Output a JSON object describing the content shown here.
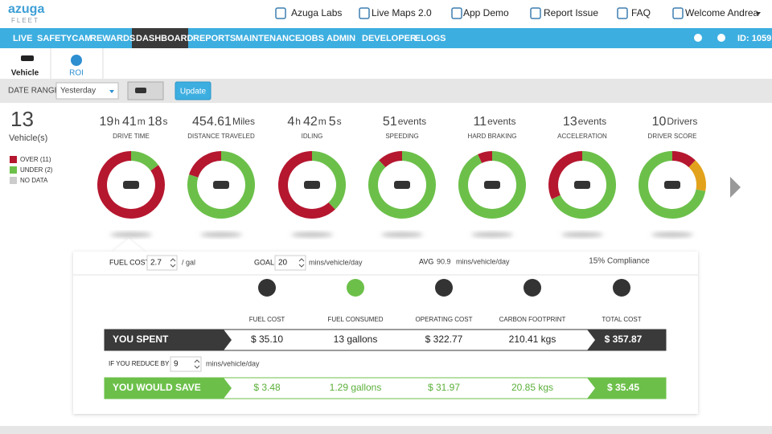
{
  "header": {
    "logo": "azuga",
    "logo_sub": "FLEET",
    "links": [
      "Azuga Labs",
      "Live Maps 2.0",
      "App Demo",
      "Report Issue",
      "FAQ",
      "Welcome Andrea"
    ]
  },
  "nav": {
    "items": [
      "LIVE",
      "SAFETYCAM",
      "REWARDS",
      "DASHBOARD",
      "REPORTS",
      "MAINTENANCE",
      "JOBS",
      "ADMIN",
      "DEVELOPER",
      "ELOGS"
    ],
    "id": "ID: 1059"
  },
  "tabs": [
    "Vehicle",
    "ROI"
  ],
  "filters": {
    "label": "DATE RANGE:",
    "range": "Yesterday",
    "button": "Update"
  },
  "summary": {
    "count": "13",
    "label": "Vehicle(s)",
    "legend": [
      {
        "label": "OVER (11)",
        "color": "#b5172f"
      },
      {
        "label": "UNDER (2)",
        "color": "#6cc04a"
      },
      {
        "label": "NO DATA",
        "color": "#cccccc"
      }
    ]
  },
  "metrics": [
    {
      "parts": [
        "19",
        "h",
        "41",
        "m",
        "18",
        "s"
      ],
      "label": "DRIVE TIME",
      "ring": [
        {
          "color": "#6cc04a",
          "value": 15
        },
        {
          "color": "#b5172f",
          "value": 85
        }
      ]
    },
    {
      "parts": [
        "454.61",
        "Miles"
      ],
      "label": "DISTANCE TRAVELED",
      "ring": [
        {
          "color": "#6cc04a",
          "value": 80
        },
        {
          "color": "#b5172f",
          "value": 20
        }
      ]
    },
    {
      "parts": [
        "4",
        "h",
        "42",
        "m",
        "5",
        "s"
      ],
      "label": "IDLING",
      "ring": [
        {
          "color": "#6cc04a",
          "value": 38
        },
        {
          "color": "#b5172f",
          "value": 62
        }
      ]
    },
    {
      "parts": [
        "51",
        "events"
      ],
      "label": "SPEEDING",
      "ring": [
        {
          "color": "#6cc04a",
          "value": 88
        },
        {
          "color": "#b5172f",
          "value": 12
        }
      ]
    },
    {
      "parts": [
        "11",
        "events"
      ],
      "label": "HARD BRAKING",
      "ring": [
        {
          "color": "#6cc04a",
          "value": 93
        },
        {
          "color": "#b5172f",
          "value": 7
        }
      ]
    },
    {
      "parts": [
        "13",
        "events"
      ],
      "label": "ACCELERATION",
      "ring": [
        {
          "color": "#6cc04a",
          "value": 68
        },
        {
          "color": "#b5172f",
          "value": 32
        }
      ]
    },
    {
      "parts": [
        "10",
        "Drivers"
      ],
      "label": "DRIVER SCORE",
      "ring": [
        {
          "color": "#b5172f",
          "value": 12
        },
        {
          "color": "#e2a21b",
          "value": 16
        },
        {
          "color": "#6cc04a",
          "value": 72
        }
      ]
    }
  ],
  "roi": {
    "fuel_cost": {
      "label": "FUEL COST",
      "value": "2.7",
      "unit": "/ gal"
    },
    "goal": {
      "label": "GOAL",
      "value": "20",
      "unit": "mins/vehicle/day"
    },
    "avg": {
      "label": "AVG",
      "value": "90.9",
      "unit": "mins/vehicle/day"
    },
    "compliance": "15% Compliance",
    "columns": [
      "FUEL COST",
      "FUEL CONSUMED",
      "OPERATING COST",
      "CARBON FOOTPRINT",
      "TOTAL COST"
    ],
    "spent": {
      "label": "YOU SPENT",
      "values": [
        "$ 35.10",
        "13 gallons",
        "$ 322.77",
        "210.41 kgs",
        "$ 357.87"
      ]
    },
    "reduce": {
      "label": "IF YOU REDUCE BY",
      "value": "9",
      "unit": "mins/vehicle/day"
    },
    "save": {
      "label": "YOU WOULD SAVE",
      "values": [
        "$ 3.48",
        "1.29 gallons",
        "$ 31.97",
        "20.85 kgs",
        "$ 35.45"
      ]
    }
  }
}
